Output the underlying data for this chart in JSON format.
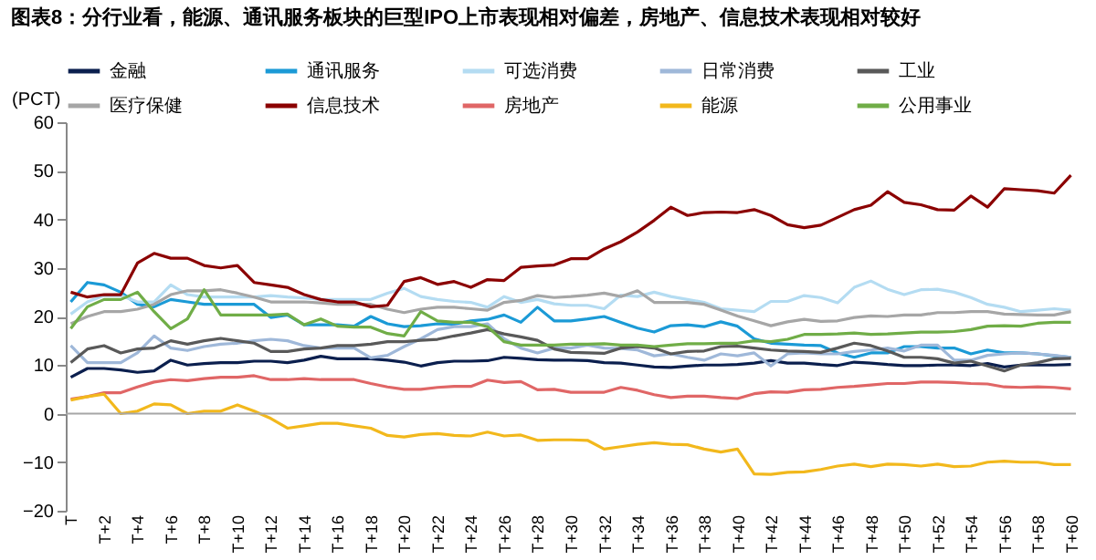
{
  "chart_data": {
    "type": "line",
    "title": "图表8：分行业看，能源、通讯服务板块的巨型IPO上市表现相对偏差，房地产、信息技术表现相对较好",
    "ylabel": "(PCT)",
    "categories": [
      "T",
      null,
      "T+2",
      null,
      "T+4",
      null,
      "T+6",
      null,
      "T+8",
      null,
      "T+10",
      null,
      "T+12",
      null,
      "T+14",
      null,
      "T+16",
      null,
      "T+18",
      null,
      "T+20",
      null,
      "T+22",
      null,
      "T+24",
      null,
      "T+26",
      null,
      "T+28",
      null,
      "T+30",
      null,
      "T+32",
      null,
      "T+34",
      null,
      "T+36",
      null,
      "T+38",
      null,
      "T+40",
      null,
      "T+42",
      null,
      "T+44",
      null,
      "T+46",
      null,
      "T+48",
      null,
      "T+50",
      null,
      "T+52",
      null,
      "T+54",
      null,
      "T+56",
      null,
      "T+58",
      null,
      "T+60"
    ],
    "ylim": [
      -20,
      60
    ],
    "yticks": [
      -20,
      -10,
      0,
      10,
      20,
      30,
      40,
      50,
      60
    ],
    "legend": "top",
    "ref_lines": [
      {
        "axis": "y",
        "value": 0,
        "color": "#a6a6a6"
      }
    ],
    "series": [
      {
        "name": "金融",
        "color": "#0b1f4e",
        "values": [
          7.5,
          9.3,
          9.3,
          9,
          8.5,
          8.8,
          11,
          10,
          10.3,
          10.5,
          10.5,
          10.8,
          10.8,
          10.5,
          11,
          11.8,
          11.3,
          11.3,
          11.3,
          11,
          10.6,
          9.8,
          10.5,
          10.8,
          10.8,
          10.9,
          11.6,
          11.4,
          11.1,
          11,
          11,
          10.9,
          10.5,
          10.4,
          10,
          9.6,
          9.5,
          9.8,
          10,
          10,
          10.1,
          10.4,
          10.9,
          10.4,
          10.4,
          10.1,
          9.9,
          10.6,
          10.4,
          10.1,
          9.9,
          9.9,
          10,
          10,
          9.9,
          10.3,
          9.6,
          10,
          10,
          10,
          10.1
        ]
      },
      {
        "name": "通讯服务",
        "color": "#1b9ad6",
        "values": [
          23,
          27,
          26.5,
          25,
          22.5,
          22,
          23.5,
          23,
          22.5,
          22.5,
          22.5,
          22.5,
          19.8,
          20.3,
          18.3,
          18.3,
          18.3,
          18,
          20,
          18.5,
          17.9,
          18.1,
          18.5,
          18.4,
          19.1,
          19.4,
          20.3,
          18.8,
          21.9,
          19.1,
          19.1,
          19.5,
          20,
          18.8,
          17.6,
          16.8,
          18.1,
          18.3,
          17.9,
          18.9,
          18,
          15.4,
          14.5,
          14.3,
          14.1,
          14,
          12.5,
          11.6,
          12.5,
          12.5,
          13.8,
          13.8,
          13.5,
          13.5,
          12.3,
          13.1,
          12.5,
          12.5,
          12.3,
          11.9,
          11.6
        ]
      },
      {
        "name": "可选消费",
        "color": "#b4dcf2",
        "values": [
          20.5,
          23,
          24.3,
          24.3,
          23,
          23,
          26.5,
          24.5,
          24,
          24,
          24,
          24,
          24.3,
          24,
          23.8,
          23.5,
          23.5,
          23.5,
          23.5,
          24.8,
          25.8,
          24.1,
          23.5,
          23.1,
          22.9,
          21.9,
          24.1,
          22.9,
          23.5,
          22.6,
          22.3,
          22.3,
          21.6,
          24.4,
          24.1,
          25,
          24.1,
          23.5,
          22.9,
          21.6,
          21.3,
          21,
          23.1,
          23.1,
          24.3,
          23.9,
          22.8,
          26,
          27.3,
          25.6,
          24.5,
          25.5,
          25.6,
          25,
          23.9,
          22.5,
          21.9,
          21,
          21.3,
          21.6,
          21.3
        ]
      },
      {
        "name": "日常消费",
        "color": "#9fb8d9",
        "values": [
          14,
          10.5,
          10.5,
          10.5,
          12.5,
          16,
          13.5,
          13,
          13.8,
          14.3,
          14.5,
          15,
          15.3,
          15,
          14,
          13.5,
          13.5,
          13.5,
          11.5,
          12,
          13.8,
          15.4,
          17.3,
          17.9,
          17.9,
          18.5,
          15.4,
          13.5,
          12.5,
          13.5,
          13.5,
          14.1,
          13.5,
          13.4,
          13.1,
          11.9,
          12.3,
          11.6,
          11,
          12.3,
          11.9,
          12.5,
          9.8,
          12.3,
          12.5,
          12.3,
          12.3,
          12.8,
          13.1,
          13.5,
          12.9,
          14.1,
          14.1,
          11,
          11,
          12,
          12.3,
          12.5,
          12.3,
          12,
          11.6
        ]
      },
      {
        "name": "工业",
        "color": "#595959",
        "values": [
          10.5,
          13.3,
          14,
          12.5,
          13.3,
          13.5,
          15,
          14.3,
          15,
          15.5,
          15,
          14.5,
          12.8,
          12.8,
          13.3,
          13.5,
          14,
          14,
          14.3,
          14.8,
          14.8,
          15.1,
          15.3,
          16,
          16.6,
          17.3,
          16.4,
          15.8,
          15.1,
          13.3,
          12.6,
          12.5,
          12.4,
          13.5,
          13.8,
          13.5,
          12.3,
          12.8,
          12.9,
          13.8,
          13.9,
          13.5,
          13.1,
          12.9,
          12.8,
          12.6,
          13.5,
          14.5,
          14,
          12.9,
          11.6,
          11.6,
          11.3,
          10.4,
          10.8,
          9.8,
          8.8,
          10,
          10.5,
          11.3,
          11.4
        ]
      },
      {
        "name": "医疗保健",
        "color": "#a6a6a6",
        "values": [
          18.5,
          20,
          21,
          21,
          21.5,
          22.5,
          24.5,
          25.3,
          25.3,
          25.5,
          24.8,
          24,
          23,
          23,
          23,
          22.8,
          22.5,
          22.5,
          22.5,
          21.5,
          20.8,
          21.5,
          21.9,
          21.9,
          21.6,
          21.3,
          22.9,
          23.3,
          24.3,
          23.9,
          24.1,
          24.4,
          24.8,
          24.1,
          25.3,
          22.9,
          22.9,
          22.9,
          22.5,
          21.3,
          20.1,
          19.1,
          18.1,
          18.9,
          19.4,
          19,
          19.1,
          19.8,
          20.1,
          20,
          20.3,
          20.3,
          20.8,
          20.8,
          21,
          21,
          20.5,
          20.4,
          20.3,
          20.3,
          21
        ]
      },
      {
        "name": "信息技术",
        "color": "#8b0000",
        "values": [
          25,
          24,
          24.5,
          24.5,
          31,
          33,
          32,
          32,
          30.5,
          30,
          30.5,
          27,
          26.5,
          26,
          24.5,
          23.5,
          23,
          23,
          22,
          22.3,
          27.2,
          28,
          26.6,
          27.2,
          26,
          27.6,
          27.4,
          30.1,
          30.4,
          30.6,
          31.9,
          31.9,
          33.9,
          35.4,
          37.4,
          39.8,
          42.5,
          40.8,
          41.4,
          41.5,
          41.4,
          42,
          40.8,
          38.9,
          38.3,
          38.8,
          40.4,
          42,
          42.9,
          45.7,
          43.5,
          43,
          42,
          41.9,
          44.8,
          42.5,
          46.3,
          46.1,
          45.9,
          45.4,
          49.1
        ]
      },
      {
        "name": "房地产",
        "color": "#e06666",
        "values": [
          3,
          3.5,
          4.3,
          4.3,
          5.5,
          6.5,
          7,
          6.8,
          7.2,
          7.5,
          7.5,
          7.8,
          7,
          7,
          7.2,
          7,
          7,
          7,
          6.2,
          5.5,
          5,
          5,
          5.4,
          5.6,
          5.6,
          6.9,
          6.4,
          6.6,
          4.9,
          5,
          4.4,
          4.4,
          4.4,
          5.4,
          4.8,
          3.9,
          3.3,
          3.6,
          3.6,
          3.3,
          3.1,
          4.1,
          4.5,
          4.4,
          4.9,
          5,
          5.4,
          5.6,
          5.9,
          6.2,
          6.2,
          6.5,
          6.5,
          6.4,
          6.2,
          6.1,
          5.5,
          5.4,
          5.5,
          5.4,
          5.1
        ]
      },
      {
        "name": "能源",
        "color": "#f2b81c",
        "values": [
          2.8,
          3.5,
          4,
          0,
          0.5,
          2,
          1.8,
          0,
          0.5,
          0.5,
          1.8,
          0.5,
          -1,
          -3,
          -2.5,
          -2,
          -2,
          -2.5,
          -3,
          -4.5,
          -4.8,
          -4.3,
          -4.1,
          -4.5,
          -4.6,
          -3.8,
          -4.6,
          -4.4,
          -5.5,
          -5.4,
          -5.4,
          -5.5,
          -7.3,
          -6.8,
          -6.3,
          -6,
          -6.3,
          -6.4,
          -7.3,
          -7.9,
          -7.3,
          -12.4,
          -12.5,
          -12.1,
          -12,
          -11.5,
          -10.8,
          -10.4,
          -10.9,
          -10.4,
          -10.5,
          -10.8,
          -10.4,
          -10.9,
          -10.8,
          -10,
          -9.8,
          -10,
          -10,
          -10.5,
          -10.5
        ]
      },
      {
        "name": "公用事业",
        "color": "#70ad47",
        "values": [
          17.5,
          22,
          23.5,
          23.5,
          25,
          21,
          17.5,
          19.5,
          25.5,
          20.3,
          20.3,
          20.3,
          20.3,
          20.5,
          18.3,
          19.5,
          18,
          17.8,
          17.8,
          16.5,
          16,
          21,
          19.1,
          18.8,
          18.8,
          17.9,
          14.8,
          14.1,
          14.1,
          14.1,
          14.3,
          14.3,
          14.4,
          14.1,
          14.1,
          13.8,
          14.1,
          14.4,
          14.4,
          14.5,
          14.5,
          15,
          14.8,
          15.3,
          16.3,
          16.3,
          16.4,
          16.6,
          16.3,
          16.4,
          16.6,
          16.8,
          16.8,
          16.9,
          17.3,
          18,
          18.1,
          18,
          18.6,
          18.8,
          18.8
        ]
      }
    ]
  }
}
